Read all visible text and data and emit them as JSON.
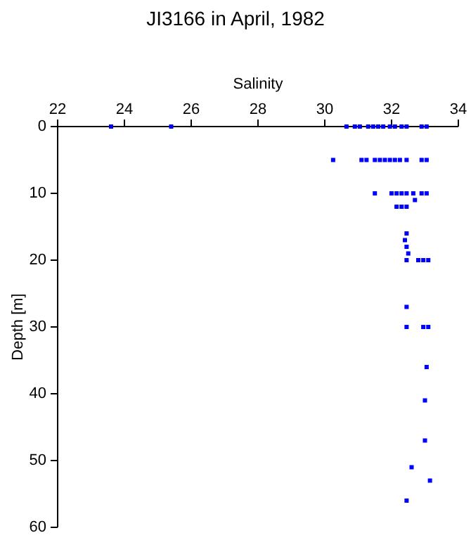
{
  "chart_data": {
    "type": "scatter",
    "title": "JI3166 in April, 1982",
    "xlabel": "Salinity",
    "ylabel": "Depth [m]",
    "xlim": [
      22,
      34
    ],
    "xticks": [
      22,
      24,
      26,
      28,
      30,
      32,
      34
    ],
    "ylim": [
      60,
      0
    ],
    "yticks": [
      0,
      10,
      20,
      30,
      40,
      50,
      60
    ],
    "marker": "square",
    "series": [
      {
        "color": "#0000ff",
        "x": [
          23.6,
          25.4,
          30.65,
          30.9,
          31.05,
          31.3,
          31.45,
          31.6,
          31.75,
          31.95,
          32.1,
          32.3,
          32.45,
          32.9,
          33.05,
          30.25,
          31.1,
          31.25,
          31.5,
          31.65,
          31.8,
          31.95,
          32.1,
          32.25,
          32.45,
          32.9,
          33.05,
          31.5,
          32.0,
          32.15,
          32.3,
          32.45,
          32.65,
          32.9,
          33.05,
          32.7,
          32.15,
          32.3,
          32.45,
          32.45,
          32.4,
          32.45,
          32.5,
          32.45,
          32.8,
          32.95,
          33.1,
          32.45,
          32.45,
          32.95,
          33.1,
          33.05,
          33.0,
          33.0,
          32.6,
          33.15,
          32.45
        ],
        "values": [
          0,
          0,
          0,
          0,
          0,
          0,
          0,
          0,
          0,
          0,
          0,
          0,
          0,
          0,
          0,
          5,
          5,
          5,
          5,
          5,
          5,
          5,
          5,
          5,
          5,
          5,
          5,
          10,
          10,
          10,
          10,
          10,
          10,
          10,
          10,
          11,
          12,
          12,
          12,
          16,
          17,
          18,
          19,
          20,
          20,
          20,
          20,
          27,
          30,
          30,
          30,
          36,
          41,
          47,
          51,
          53,
          56
        ]
      }
    ]
  }
}
